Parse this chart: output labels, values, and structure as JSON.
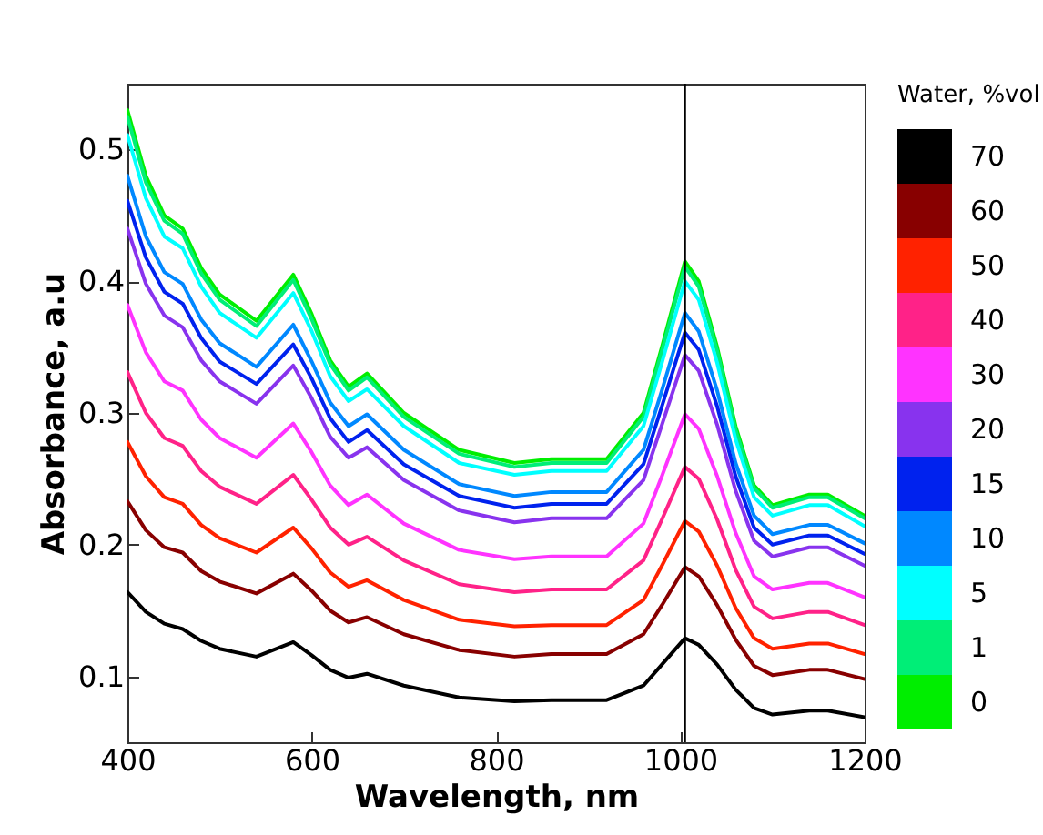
{
  "chart_data": {
    "type": "line",
    "xlabel": "Wavelength, nm",
    "ylabel": "Absorbance, a.u",
    "legend_title": "Water, %vol",
    "legend": "right",
    "grid": false,
    "marker": "none",
    "line_style": "solid",
    "x": [
      400,
      420,
      440,
      460,
      480,
      500,
      540,
      580,
      600,
      620,
      640,
      660,
      700,
      760,
      820,
      860,
      920,
      960,
      980,
      1005,
      1020,
      1040,
      1060,
      1080,
      1100,
      1140,
      1160,
      1200
    ],
    "xlim": [
      400,
      1200
    ],
    "xticks": [
      400,
      600,
      800,
      1000,
      1200
    ],
    "ylim": [
      0.05,
      0.55
    ],
    "yticks": [
      0.1,
      0.2,
      0.3,
      0.4,
      0.5
    ],
    "ref_lines": [
      {
        "axis": "x",
        "value": 1005,
        "color": "#000000"
      }
    ],
    "series": [
      {
        "name": "0",
        "color": "#00ee00",
        "values": [
          0.53,
          0.48,
          0.45,
          0.44,
          0.41,
          0.39,
          0.37,
          0.405,
          0.375,
          0.34,
          0.32,
          0.33,
          0.3,
          0.272,
          0.262,
          0.265,
          0.265,
          0.3,
          0.35,
          0.415,
          0.4,
          0.35,
          0.29,
          0.245,
          0.23,
          0.238,
          0.238,
          0.222
        ]
      },
      {
        "name": "1",
        "color": "#00ee77",
        "values": [
          0.525,
          0.475,
          0.446,
          0.436,
          0.406,
          0.386,
          0.366,
          0.401,
          0.371,
          0.337,
          0.317,
          0.327,
          0.297,
          0.269,
          0.259,
          0.262,
          0.262,
          0.297,
          0.347,
          0.411,
          0.396,
          0.347,
          0.287,
          0.243,
          0.228,
          0.236,
          0.236,
          0.22
        ]
      },
      {
        "name": "5",
        "color": "#00ffff",
        "values": [
          0.511,
          0.463,
          0.434,
          0.425,
          0.396,
          0.376,
          0.357,
          0.391,
          0.362,
          0.328,
          0.309,
          0.318,
          0.29,
          0.262,
          0.253,
          0.256,
          0.256,
          0.29,
          0.338,
          0.4,
          0.386,
          0.338,
          0.28,
          0.236,
          0.222,
          0.23,
          0.23,
          0.214
        ]
      },
      {
        "name": "10",
        "color": "#0088ff",
        "values": [
          0.48,
          0.434,
          0.407,
          0.398,
          0.371,
          0.353,
          0.335,
          0.367,
          0.339,
          0.308,
          0.29,
          0.299,
          0.272,
          0.246,
          0.237,
          0.24,
          0.24,
          0.272,
          0.317,
          0.376,
          0.362,
          0.317,
          0.262,
          0.222,
          0.208,
          0.215,
          0.215,
          0.201
        ]
      },
      {
        "name": "15",
        "color": "#0022ee",
        "values": [
          0.461,
          0.418,
          0.392,
          0.383,
          0.357,
          0.339,
          0.322,
          0.352,
          0.326,
          0.296,
          0.278,
          0.287,
          0.261,
          0.237,
          0.228,
          0.231,
          0.231,
          0.261,
          0.305,
          0.361,
          0.348,
          0.305,
          0.252,
          0.213,
          0.2,
          0.207,
          0.207,
          0.193
        ]
      },
      {
        "name": "20",
        "color": "#8833ee",
        "values": [
          0.44,
          0.398,
          0.374,
          0.365,
          0.34,
          0.324,
          0.307,
          0.336,
          0.311,
          0.282,
          0.266,
          0.274,
          0.249,
          0.226,
          0.217,
          0.22,
          0.22,
          0.249,
          0.291,
          0.344,
          0.332,
          0.291,
          0.241,
          0.203,
          0.191,
          0.198,
          0.198,
          0.184
        ]
      },
      {
        "name": "30",
        "color": "#ff33ff",
        "values": [
          0.382,
          0.346,
          0.324,
          0.317,
          0.295,
          0.281,
          0.266,
          0.292,
          0.27,
          0.245,
          0.23,
          0.238,
          0.216,
          0.196,
          0.189,
          0.191,
          0.191,
          0.216,
          0.252,
          0.299,
          0.288,
          0.252,
          0.209,
          0.176,
          0.166,
          0.171,
          0.171,
          0.16
        ]
      },
      {
        "name": "40",
        "color": "#ff2288",
        "values": [
          0.331,
          0.3,
          0.281,
          0.275,
          0.256,
          0.244,
          0.231,
          0.253,
          0.234,
          0.213,
          0.2,
          0.206,
          0.188,
          0.17,
          0.164,
          0.166,
          0.166,
          0.188,
          0.219,
          0.259,
          0.25,
          0.219,
          0.181,
          0.153,
          0.144,
          0.149,
          0.149,
          0.139
        ]
      },
      {
        "name": "50",
        "color": "#ff2200",
        "values": [
          0.278,
          0.252,
          0.236,
          0.231,
          0.215,
          0.205,
          0.194,
          0.213,
          0.197,
          0.179,
          0.168,
          0.173,
          0.158,
          0.143,
          0.138,
          0.139,
          0.139,
          0.158,
          0.184,
          0.218,
          0.21,
          0.184,
          0.152,
          0.129,
          0.121,
          0.125,
          0.125,
          0.117
        ]
      },
      {
        "name": "60",
        "color": "#880000",
        "values": [
          0.233,
          0.211,
          0.198,
          0.194,
          0.18,
          0.172,
          0.163,
          0.178,
          0.165,
          0.15,
          0.141,
          0.145,
          0.132,
          0.12,
          0.115,
          0.117,
          0.117,
          0.132,
          0.154,
          0.183,
          0.176,
          0.154,
          0.128,
          0.108,
          0.101,
          0.105,
          0.105,
          0.098
        ]
      },
      {
        "name": "70",
        "color": "#000000",
        "values": [
          0.164,
          0.149,
          0.14,
          0.136,
          0.127,
          0.121,
          0.115,
          0.126,
          0.116,
          0.105,
          0.099,
          0.102,
          0.093,
          0.084,
          0.081,
          0.082,
          0.082,
          0.093,
          0.109,
          0.129,
          0.124,
          0.109,
          0.09,
          0.076,
          0.071,
          0.074,
          0.074,
          0.069
        ]
      }
    ]
  }
}
